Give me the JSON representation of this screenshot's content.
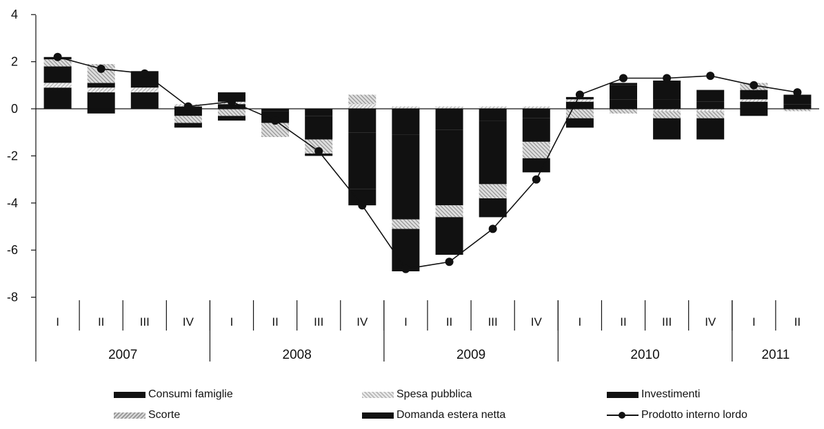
{
  "chart_data": {
    "type": "bar",
    "stacked": true,
    "ylim": [
      -8,
      4
    ],
    "yticks": [
      "4",
      "2",
      "0",
      "-2",
      "-4",
      "-6",
      "-8"
    ],
    "quarters": [
      "I",
      "II",
      "III",
      "IV",
      "I",
      "II",
      "III",
      "IV",
      "I",
      "II",
      "III",
      "IV",
      "I",
      "II",
      "III",
      "IV",
      "I",
      "II"
    ],
    "years": [
      {
        "label": "2007",
        "span": 4
      },
      {
        "label": "2008",
        "span": 4
      },
      {
        "label": "2009",
        "span": 4
      },
      {
        "label": "2010",
        "span": 4
      },
      {
        "label": "2011",
        "span": 2
      }
    ],
    "series": [
      {
        "name": "Consumi famiglie",
        "kind": "bar",
        "color": "#111111",
        "values": [
          0.9,
          0.7,
          0.7,
          0.1,
          0.2,
          -0.1,
          -0.3,
          -1.0,
          -1.1,
          -0.9,
          -0.5,
          -0.4,
          0.3,
          0.4,
          0.4,
          0.3,
          0.3,
          0.2
        ]
      },
      {
        "name": "Spesa pubblica",
        "kind": "bar",
        "color": "#d0d0d0",
        "values": [
          0.2,
          0.2,
          0.2,
          0.1,
          0.1,
          0.0,
          0.0,
          0.2,
          0.1,
          0.1,
          0.1,
          0.1,
          0.1,
          0.0,
          -0.1,
          -0.1,
          0.1,
          0.0
        ]
      },
      {
        "name": "Investimenti",
        "kind": "bar",
        "color": "#111111",
        "values": [
          0.7,
          0.2,
          0.7,
          -0.3,
          0.4,
          -0.5,
          -1.0,
          -2.4,
          -3.6,
          -3.2,
          -2.7,
          -1.0,
          0.1,
          0.6,
          0.8,
          0.5,
          0.4,
          0.4
        ]
      },
      {
        "name": "Scorte",
        "kind": "bar",
        "color": "#b8b8b8",
        "values": [
          0.3,
          0.8,
          0.0,
          -0.3,
          -0.3,
          -0.6,
          -0.6,
          0.4,
          -0.4,
          -0.5,
          -0.6,
          -0.7,
          -0.4,
          -0.2,
          -0.3,
          -0.3,
          0.3,
          -0.1
        ]
      },
      {
        "name": "Domanda estera netta",
        "kind": "bar",
        "color": "#111111",
        "values": [
          0.1,
          -0.2,
          0.0,
          -0.2,
          -0.2,
          0.0,
          -0.1,
          -0.7,
          -1.8,
          -1.6,
          -0.8,
          -0.6,
          -0.4,
          0.1,
          -0.9,
          -0.9,
          -0.3,
          0.0
        ]
      },
      {
        "name": "Prodotto interno lordo",
        "kind": "line",
        "color": "#111111",
        "values": [
          2.2,
          1.7,
          1.5,
          0.1,
          0.3,
          -0.5,
          -1.8,
          -4.1,
          -6.8,
          -6.5,
          -5.1,
          -3.0,
          0.6,
          1.3,
          1.3,
          1.4,
          1.0,
          0.7
        ]
      }
    ],
    "legend": [
      {
        "label": "Consumi famiglie",
        "swatch": "bar",
        "color": "#111111"
      },
      {
        "label": "Spesa pubblica",
        "swatch": "bar",
        "color": "#d0d0d0"
      },
      {
        "label": "Investimenti",
        "swatch": "bar",
        "color": "#111111"
      },
      {
        "label": "Scorte",
        "swatch": "bar",
        "color": "#b8b8b8"
      },
      {
        "label": "Domanda estera netta",
        "swatch": "bar",
        "color": "#111111"
      },
      {
        "label": "Prodotto interno lordo",
        "swatch": "line",
        "color": "#111111"
      }
    ],
    "legend_position": "bottom",
    "grid": false
  }
}
